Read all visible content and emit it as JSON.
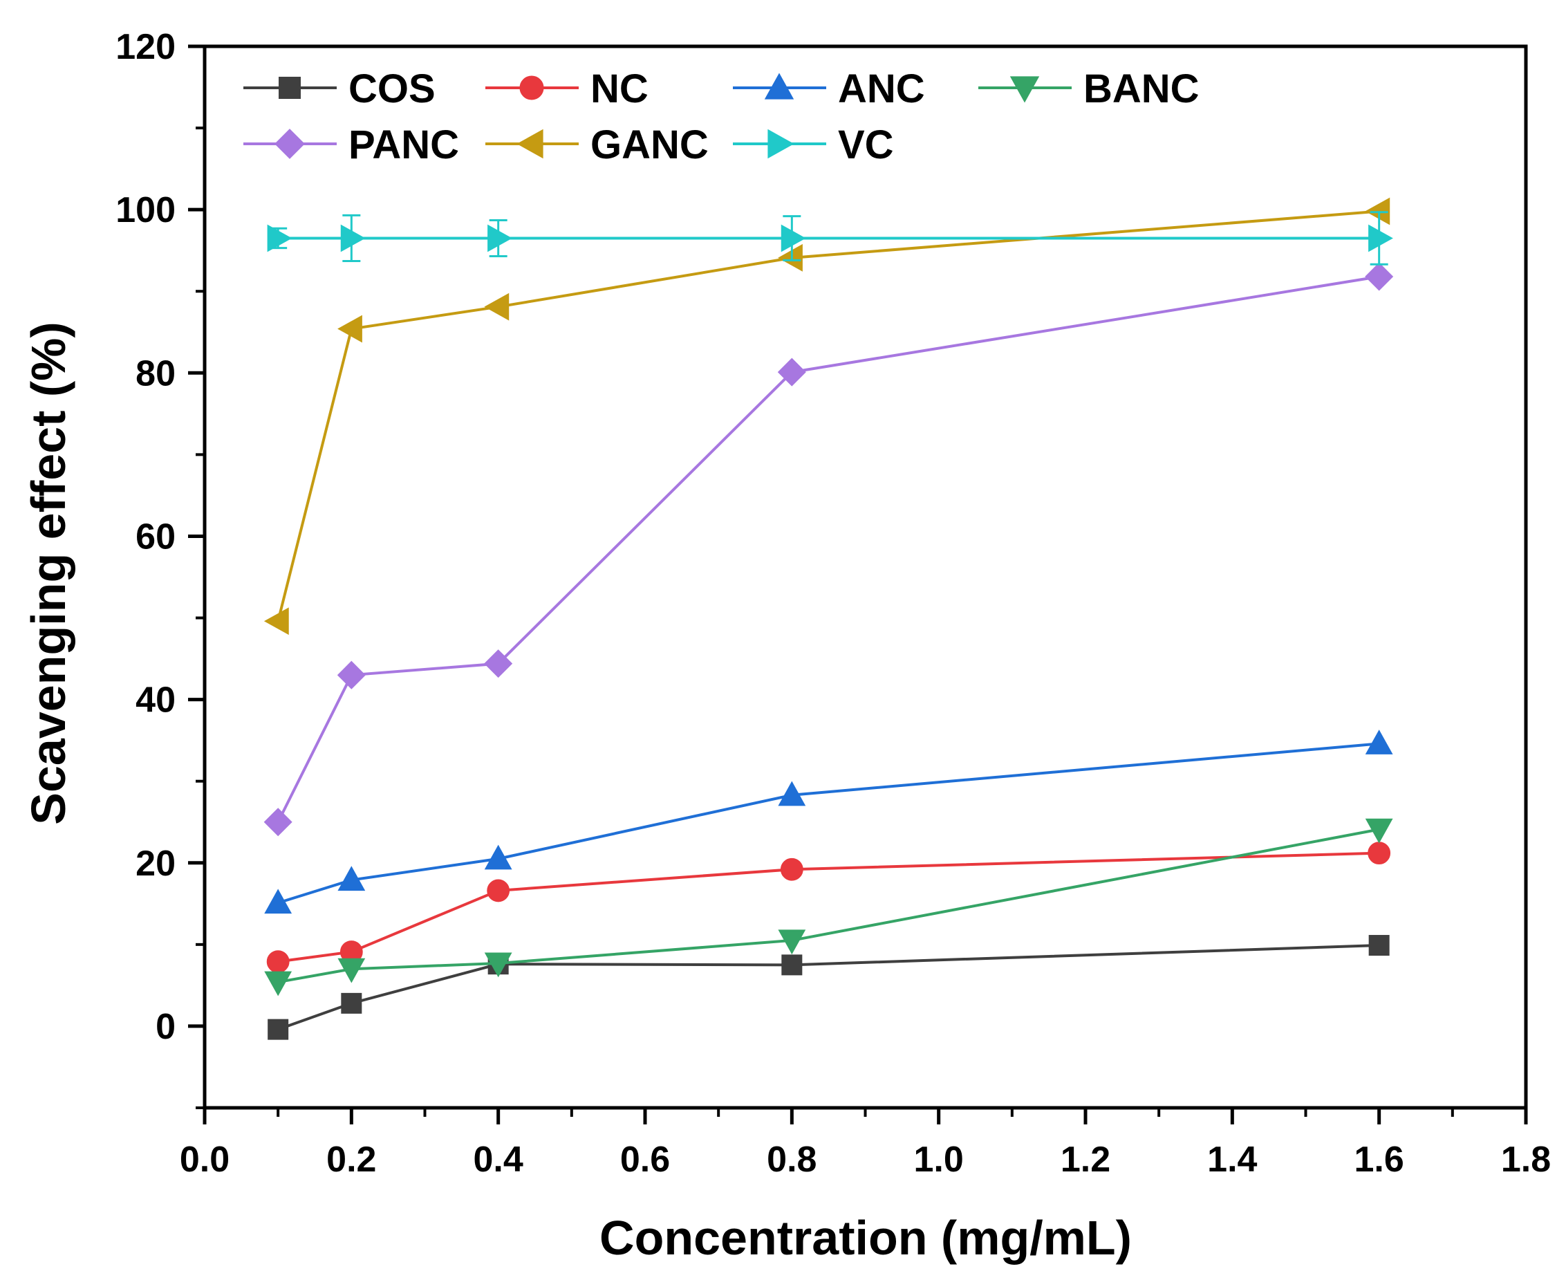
{
  "chart_data": {
    "type": "line",
    "title": "",
    "xlabel": "Concentration (mg/mL)",
    "ylabel": "Scavenging effect (%)",
    "xlim": [
      0.0,
      1.8
    ],
    "ylim": [
      -10,
      120
    ],
    "xticks": [
      "0.0",
      "0.2",
      "0.4",
      "0.6",
      "0.8",
      "1.0",
      "1.2",
      "1.4",
      "1.6",
      "1.8"
    ],
    "yticks": [
      "0",
      "20",
      "40",
      "60",
      "80",
      "100",
      "120"
    ],
    "grid": false,
    "legend_position": "top-left",
    "x": [
      0.1,
      0.2,
      0.4,
      0.8,
      1.6
    ],
    "series": [
      {
        "name": "COS",
        "color": "#3f3f3f",
        "marker": "square",
        "values": [
          -0.4,
          2.8,
          7.6,
          7.5,
          9.9
        ]
      },
      {
        "name": "NC",
        "color": "#e8383d",
        "marker": "circle",
        "values": [
          7.9,
          9.1,
          16.6,
          19.2,
          21.2
        ]
      },
      {
        "name": "ANC",
        "color": "#1f6fd6",
        "marker": "triangle-up",
        "values": [
          15.1,
          17.9,
          20.5,
          28.3,
          34.6
        ]
      },
      {
        "name": "BANC",
        "color": "#35a466",
        "marker": "triangle-down",
        "values": [
          5.4,
          7.0,
          7.7,
          10.5,
          24.1
        ]
      },
      {
        "name": "PANC",
        "color": "#a777e0",
        "marker": "diamond",
        "values": [
          25.0,
          43.0,
          44.4,
          80.1,
          91.8
        ]
      },
      {
        "name": "GANC",
        "color": "#c59b12",
        "marker": "triangle-left",
        "values": [
          49.6,
          85.4,
          88.1,
          94.1,
          99.8
        ]
      },
      {
        "name": "VC",
        "color": "#20c9c9",
        "marker": "triangle-right",
        "values": [
          96.5,
          96.5,
          96.5,
          96.5,
          96.5
        ],
        "errors": [
          1.2,
          2.8,
          2.2,
          2.7,
          3.2
        ]
      }
    ]
  }
}
